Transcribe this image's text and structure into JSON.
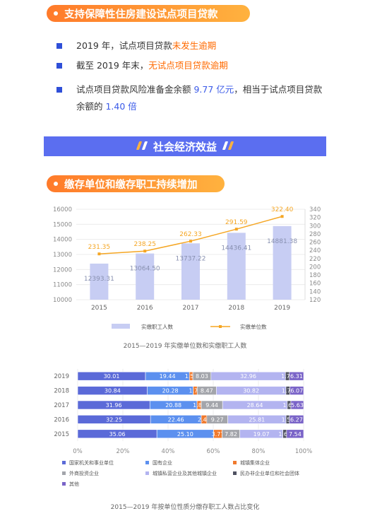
{
  "section1": {
    "title": "支持保障性住房建设试点项目贷款",
    "bullets": [
      {
        "pre": "2019 年，试点项目贷款",
        "hl": "未发生逾期",
        "post": ""
      },
      {
        "pre": "截至 2019 年末，",
        "hl": "无试点项目贷款逾期",
        "post": ""
      },
      {
        "pre": "试点项目贷款风险准备金余额 ",
        "hl": "9.77 亿元",
        "post": "，相当于试点项目贷款",
        "line2_pre": "余额的 ",
        "line2_hl": "1.40 倍"
      }
    ]
  },
  "banner": {
    "title": "社会经济效益"
  },
  "section2": {
    "title": "缴存单位和缴存职工持续增加"
  },
  "colors": {
    "orange": "#ff8a1f",
    "banner": "#5b6ef0",
    "bar_light": "#c7cdf3",
    "line": "#f5a623",
    "seg": [
      "#5b6ad8",
      "#5c90ef",
      "#f07a2e",
      "#a3a5ab",
      "#b3b4f0",
      "#4e5160",
      "#7a64c8"
    ]
  },
  "chart_data": [
    {
      "type": "bar",
      "categories": [
        "2015",
        "2016",
        "2017",
        "2018",
        "2019"
      ],
      "series": [
        {
          "name": "实缴职工人数",
          "type": "bar",
          "axis": "left",
          "values": [
            12393.31,
            13064.5,
            13737.22,
            14436.41,
            14881.38
          ],
          "labels": [
            "12393.31",
            "13064.50",
            "13737.22",
            "14436.41",
            "14881.38"
          ]
        },
        {
          "name": "实缴单位数",
          "type": "line",
          "axis": "right",
          "values": [
            231.35,
            238.25,
            262.33,
            291.59,
            322.4
          ],
          "labels": [
            "231.35",
            "238.25",
            "262.33",
            "291.59",
            "322.40"
          ]
        }
      ],
      "ylim": [
        10000,
        16000
      ],
      "yticks": [
        "10000",
        "11000",
        "12000",
        "13000",
        "14000",
        "15000",
        "16000"
      ],
      "y2lim": [
        120,
        340
      ],
      "y2ticks": [
        "120",
        "140",
        "160",
        "180",
        "200",
        "220",
        "240",
        "260",
        "280",
        "300",
        "320",
        "340"
      ],
      "legend_position": "bottom",
      "caption": "2015—2019 年实缴单位数和实缴职工人数"
    },
    {
      "type": "bar",
      "orientation": "horizontal",
      "stacked": true,
      "categories": [
        "2019",
        "2018",
        "2017",
        "2016",
        "2015"
      ],
      "series": [
        {
          "name": "国家机关和事业单位",
          "values": [
            30.01,
            30.84,
            31.96,
            32.25,
            35.06
          ]
        },
        {
          "name": "国有企业",
          "values": [
            19.44,
            20.28,
            20.88,
            22.46,
            25.1
          ]
        },
        {
          "name": "城镇集体企业",
          "values": [
            1.52,
            1.77,
            1.85,
            2.43,
            3.77
          ]
        },
        {
          "name": "外商投资企业",
          "values": [
            8.03,
            8.47,
            9.44,
            9.27,
            7.82
          ]
        },
        {
          "name": "城镇私营企业及其他城镇企业",
          "values": [
            32.96,
            30.82,
            28.64,
            25.81,
            19.07
          ]
        },
        {
          "name": "民办非企业单位和社会团体",
          "values": [
            1.73,
            1.75,
            1.6,
            1.51,
            1.64
          ]
        },
        {
          "name": "其他",
          "values": [
            6.31,
            6.07,
            5.63,
            6.27,
            7.54
          ]
        }
      ],
      "segment_labels": [
        [
          "30.01",
          "19.44",
          "1.52",
          "8.03",
          "32.96",
          "1.73",
          "6.31"
        ],
        [
          "30.84",
          "20.28",
          "1.77",
          "8.47",
          "30.82",
          "1.75",
          "6.07"
        ],
        [
          "31.96",
          "20.88",
          "1.85",
          "9.44",
          "28.64",
          "1.60",
          "5.63"
        ],
        [
          "32.25",
          "22.46",
          "2.43",
          "9.27",
          "25.81",
          "1.51",
          "6.27"
        ],
        [
          "35.06",
          "25.10",
          "3.77",
          "7.82",
          "19.07",
          "1.64",
          "7.54"
        ]
      ],
      "xlim": [
        0,
        100
      ],
      "xticks": [
        "0%",
        "20%",
        "40%",
        "60%",
        "80%",
        "100%"
      ],
      "legend_position": "bottom",
      "caption": "2015—2019 年按单位性质分缴存职工人数占比变化"
    }
  ]
}
